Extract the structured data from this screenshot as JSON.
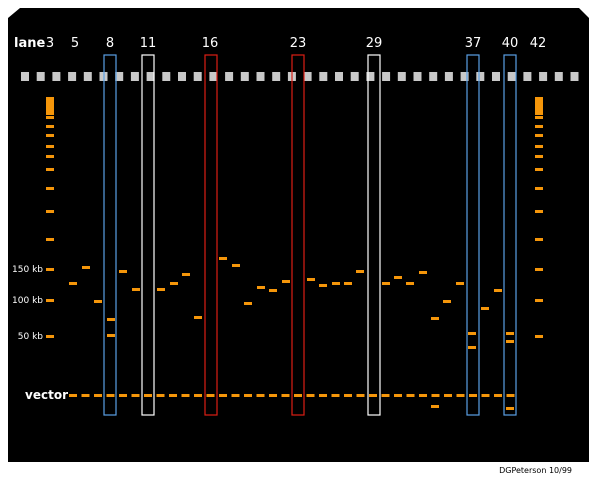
{
  "figure": {
    "lane_word": "lane",
    "lanes": [
      "3",
      "5",
      "8",
      "11",
      "16",
      "23",
      "29",
      "37",
      "40",
      "42"
    ],
    "size_labels": [
      "150 kb",
      "100 kb",
      "50 kb"
    ],
    "vector_label": "vector",
    "credit": "DGPeterson 10/99",
    "colors": {
      "background": "#000000",
      "band": "#f5960a",
      "well": "#c8c8c8",
      "box_blue": "#5aa0e6",
      "box_white": "#ffffff",
      "box_red": "#dc1e14"
    }
  }
}
